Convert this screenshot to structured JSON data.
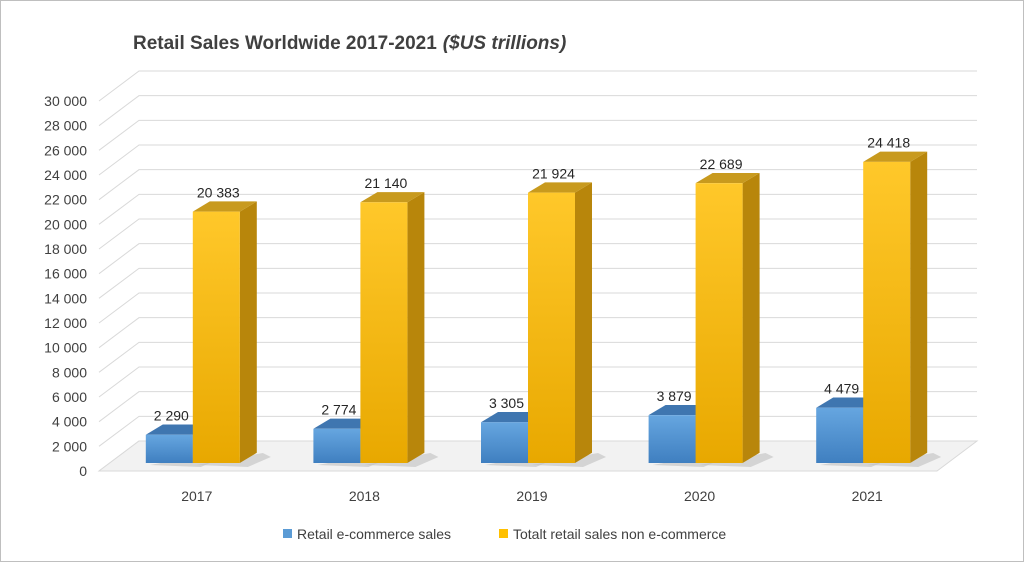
{
  "chart_data": {
    "type": "bar",
    "title": "Retail Sales Worldwide 2017-2021",
    "title_unit": "($US trillions)",
    "categories": [
      "2017",
      "2018",
      "2019",
      "2020",
      "2021"
    ],
    "series": [
      {
        "name": "Retail e-commerce sales",
        "values": [
          2290,
          2774,
          3305,
          3879,
          4479
        ],
        "labels": [
          "2 290",
          "2 774",
          "3 305",
          "3 879",
          "4 479"
        ],
        "color": "#5b9bd5"
      },
      {
        "name": "Totalt retail sales non e-commerce",
        "values": [
          20383,
          21140,
          21924,
          22689,
          24418
        ],
        "labels": [
          "20 383",
          "21 140",
          "21 924",
          "22 689",
          "24 418"
        ],
        "color": "#ffc000"
      }
    ],
    "ylim": [
      0,
      30000
    ],
    "yticks": [
      "0",
      "2 000",
      "4 000",
      "6 000",
      "8 000",
      "10 000",
      "12 000",
      "14 000",
      "16 000",
      "18 000",
      "20 000",
      "22 000",
      "24 000",
      "26 000",
      "28 000",
      "30 000"
    ],
    "grid": true,
    "legend_position": "bottom",
    "style": "3d-clustered-column"
  }
}
